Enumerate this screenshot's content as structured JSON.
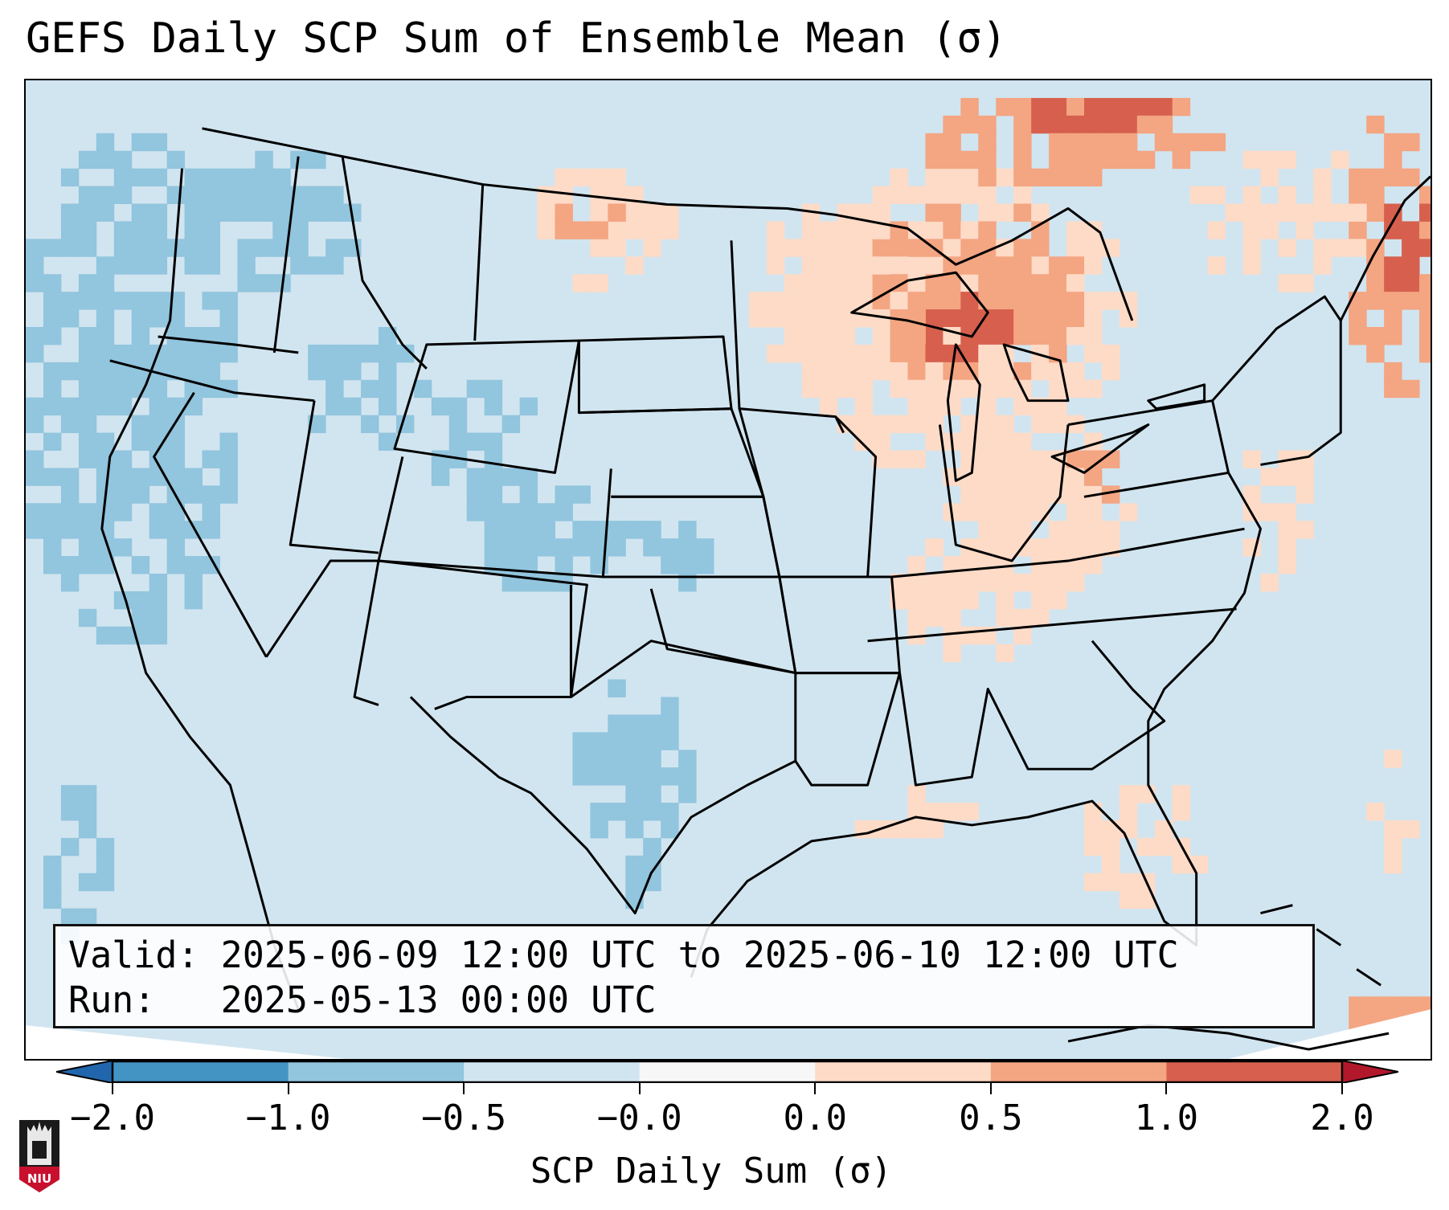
{
  "title": "GEFS Daily SCP Sum of Ensemble Mean (σ)",
  "info_box": {
    "valid_label": "Valid:",
    "valid_value": "2025-06-09 12:00 UTC to 2025-06-10 12:00 UTC",
    "run_label": "Run:",
    "run_value": "2025-05-13 00:00 UTC"
  },
  "colorbar": {
    "label": "SCP Daily Sum (σ)",
    "ticks": [
      "-2.0",
      "-1.0",
      "-0.5",
      "-0.0",
      "0.0",
      "0.5",
      "1.0",
      "2.0"
    ],
    "bins": [
      {
        "range": "< -2.0",
        "color": "#2166ac"
      },
      {
        "range": "-2.0 to -1.0",
        "color": "#4393c3"
      },
      {
        "range": "-1.0 to -0.5",
        "color": "#92c5de"
      },
      {
        "range": "-0.5 to -0.0",
        "color": "#d1e5f0"
      },
      {
        "range": "-0.0 to 0.0",
        "color": "#f7f7f7"
      },
      {
        "range": "0.0 to 0.5",
        "color": "#fddbc7"
      },
      {
        "range": "0.5 to 1.0",
        "color": "#f4a582"
      },
      {
        "range": "1.0 to 2.0",
        "color": "#d6604d"
      },
      {
        "range": "> 2.0",
        "color": "#b2182b"
      }
    ]
  },
  "logo": {
    "text": "NIU",
    "name": "Northern Illinois University"
  },
  "map_regions": [
    {
      "region": "Pacific Northwest / offshore",
      "category": "-1.0 to -0.5"
    },
    {
      "region": "Idaho / Montana west",
      "category": "-1.0 to -0.5"
    },
    {
      "region": "Wyoming / Colorado / Utah",
      "category": "-1.0 to -0.5"
    },
    {
      "region": "West Texas / Mexico",
      "category": "-1.0 to -0.5"
    },
    {
      "region": "Northern Plains / Saskatchewan",
      "category": "0.0 to 0.5"
    },
    {
      "region": "Upper Midwest / Great Lakes",
      "category": "0.5 to 1.0"
    },
    {
      "region": "Lake Superior / Michigan core",
      "category": "1.0 to 2.0"
    },
    {
      "region": "Ontario / Quebec north",
      "category": "1.0 to 2.0"
    },
    {
      "region": "Ohio Valley",
      "category": "0.0 to 0.5"
    },
    {
      "region": "Maritimes / Nova Scotia",
      "category": "0.5 to 1.0"
    },
    {
      "region": "Southeast / Gulf coast",
      "category": "0.0 to 0.5"
    },
    {
      "region": "Cuba / Hispaniola",
      "category": "0.5 to 1.0"
    }
  ]
}
